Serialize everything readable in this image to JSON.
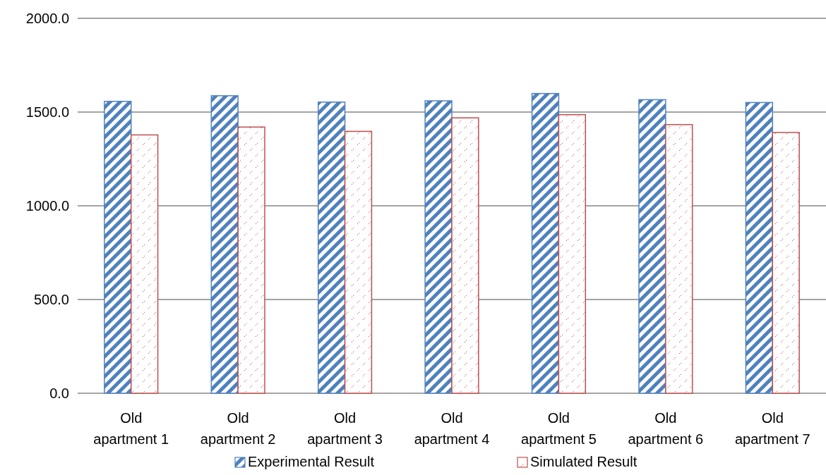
{
  "chart_data": {
    "type": "bar",
    "categories": [
      "Old apartment 1",
      "Old apartment 2",
      "Old apartment 3",
      "Old apartment 4",
      "Old apartment 5",
      "Old apartment 6",
      "Old apartment 7"
    ],
    "series": [
      {
        "name": "Experimental Result",
        "color": "#4f81bd",
        "values": [
          1557,
          1587,
          1553,
          1560,
          1599,
          1566,
          1551
        ]
      },
      {
        "name": "Simulated Result",
        "color": "#c0504d",
        "values": [
          1378,
          1420,
          1397,
          1469,
          1486,
          1433,
          1391
        ]
      }
    ],
    "ylim": [
      0,
      2000
    ],
    "yticks": [
      {
        "value": 0,
        "label": "0.0"
      },
      {
        "value": 500,
        "label": "500.0"
      },
      {
        "value": 1000,
        "label": "1000.0"
      },
      {
        "value": 1500,
        "label": "1500.0"
      },
      {
        "value": 2000,
        "label": "2000.0"
      }
    ],
    "grid": "y",
    "legend": "bottom"
  }
}
